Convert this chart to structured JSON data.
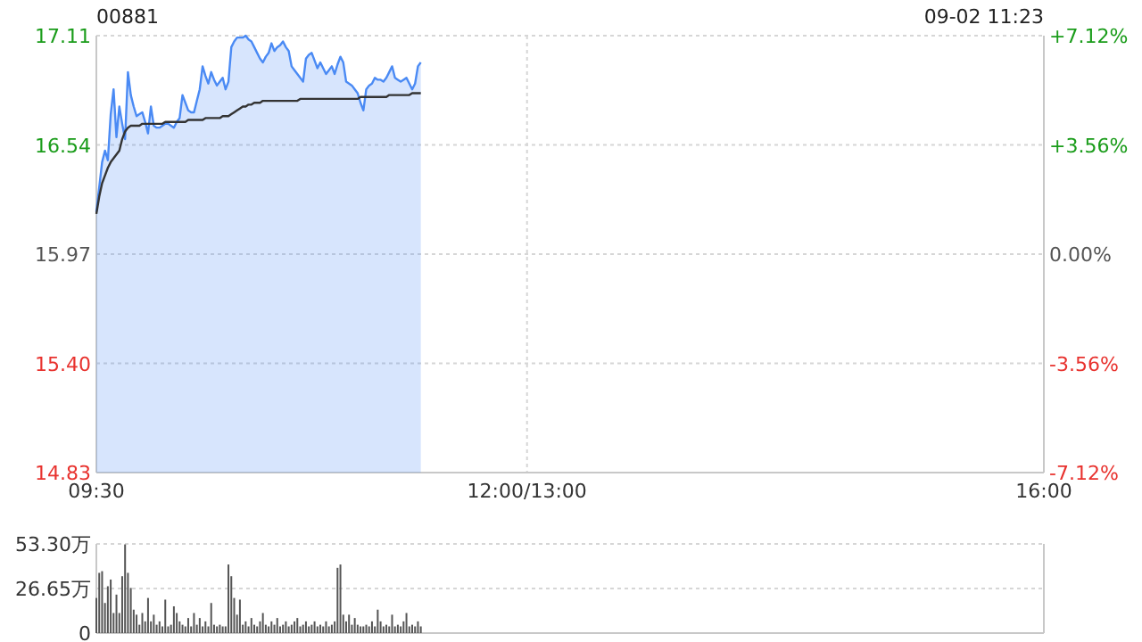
{
  "chart_data": [
    {
      "type": "line",
      "title": "00881",
      "subtitle": "09-02 11:23",
      "grid": true,
      "categories": [
        "09:30",
        null,
        null,
        null,
        null,
        null,
        null,
        null,
        null,
        null,
        null,
        null,
        null,
        null,
        null,
        null,
        null,
        null,
        null,
        null,
        null,
        null,
        null,
        null,
        null,
        null,
        null,
        null,
        null,
        null,
        null,
        null,
        null,
        null,
        null,
        null,
        null,
        null,
        null,
        null,
        null,
        null,
        null,
        null,
        null,
        null,
        null,
        null,
        null,
        null,
        null,
        null,
        null,
        null,
        null,
        null,
        null,
        null,
        null,
        null,
        null,
        null,
        null,
        null,
        null,
        null,
        null,
        null,
        null,
        null,
        null,
        null,
        null,
        null,
        null,
        null,
        null,
        null,
        null,
        null,
        null,
        null,
        null,
        null,
        null,
        null,
        null,
        null,
        null,
        null,
        null,
        null,
        null,
        null,
        null,
        null,
        null,
        null,
        null,
        null,
        null,
        null,
        null,
        null,
        null,
        null,
        null,
        null,
        null,
        null,
        null,
        null,
        null,
        null,
        null,
        null,
        null,
        null,
        null,
        null,
        null,
        null,
        null,
        null,
        null,
        null,
        null,
        null,
        null,
        null,
        null,
        null,
        null,
        null,
        null,
        null,
        null,
        null,
        null,
        null,
        null,
        null,
        null,
        null,
        null,
        null,
        null,
        null,
        null,
        null,
        "12:00/13:00",
        null,
        null,
        null,
        null,
        null,
        null,
        null,
        null,
        null,
        null,
        null,
        null,
        null,
        null,
        null,
        null,
        null,
        null,
        null,
        null,
        null,
        null,
        null,
        null,
        null,
        null,
        null,
        null,
        null,
        null,
        null,
        null,
        null,
        null,
        null,
        null,
        null,
        null,
        null,
        null,
        null,
        null,
        null,
        null,
        null,
        null,
        null,
        null,
        null,
        null,
        null,
        null,
        null,
        null,
        null,
        null,
        null,
        null,
        null,
        null,
        null,
        null,
        null,
        null,
        null,
        null,
        null,
        null,
        null,
        null,
        null,
        null,
        null,
        null,
        null,
        null,
        null,
        null,
        null,
        null,
        null,
        null,
        null,
        null,
        null,
        null,
        null,
        null,
        null,
        null,
        null,
        null,
        null,
        null,
        null,
        null,
        null,
        null,
        null,
        null,
        null,
        null,
        null,
        null,
        null,
        null,
        null,
        null,
        null,
        null,
        null,
        null,
        null,
        null,
        null,
        null,
        null,
        null,
        null,
        null,
        null,
        null,
        null,
        null,
        null,
        null,
        null,
        null,
        null,
        null,
        null,
        null,
        null,
        null,
        null,
        null,
        null,
        null,
        null,
        null,
        null,
        null,
        null,
        null,
        null,
        null,
        null,
        null,
        null,
        null,
        null,
        null,
        null,
        null,
        null,
        null,
        null,
        null,
        null,
        null,
        null,
        null,
        null,
        null,
        null,
        null,
        null,
        null,
        null,
        null,
        null,
        null,
        null,
        null,
        null,
        null,
        null,
        null,
        null,
        "16:00"
      ],
      "ylim": [
        14.83,
        17.11
      ],
      "yticks": [
        14.83,
        {
          "value": 15.4,
          "label": "15.40"
        },
        15.97,
        16.54,
        17.11
      ],
      "y2lim": [
        -7.12,
        7.12
      ],
      "y2ticks": [
        {
          "value": -7.12,
          "label": "-7.12%"
        },
        {
          "value": -3.56,
          "label": "-3.56%"
        },
        {
          "value": 0,
          "label": "0.00%"
        },
        {
          "value": 3.56,
          "label": "+3.56%"
        },
        {
          "value": 7.12,
          "label": "+7.12%"
        }
      ],
      "series": [
        {
          "type": "area",
          "color": "#4a8af4",
          "values": [
            16.19,
            16.32,
            16.45,
            16.51,
            16.46,
            16.7,
            16.83,
            16.58,
            16.74,
            16.65,
            16.57,
            16.92,
            16.8,
            16.74,
            16.69,
            16.7,
            16.71,
            16.66,
            16.6,
            16.74,
            16.64,
            16.63,
            16.63,
            16.64,
            16.65,
            16.65,
            16.64,
            16.63,
            16.66,
            16.68,
            16.8,
            16.76,
            16.72,
            16.71,
            16.71,
            16.77,
            16.83,
            16.95,
            16.9,
            16.86,
            16.92,
            16.88,
            16.85,
            16.87,
            16.89,
            16.83,
            16.87,
            17.05,
            17.08,
            17.1,
            17.1,
            17.1,
            17.11,
            17.09,
            17.08,
            17.05,
            17.02,
            16.99,
            16.97,
            17.0,
            17.02,
            17.07,
            17.03,
            17.05,
            17.06,
            17.08,
            17.05,
            17.03,
            16.95,
            16.93,
            16.91,
            16.89,
            16.87,
            16.99,
            17.01,
            17.02,
            16.98,
            16.94,
            16.97,
            16.94,
            16.91,
            16.93,
            16.95,
            16.91,
            16.96,
            17.0,
            16.97,
            16.87,
            16.86,
            16.85,
            16.83,
            16.81,
            16.76,
            16.72,
            16.83,
            16.85,
            16.86,
            16.89,
            16.88,
            16.88,
            16.87,
            16.89,
            16.92,
            16.95,
            16.89,
            16.88,
            16.87,
            16.88,
            16.89,
            16.86,
            16.83,
            16.86,
            16.95,
            16.97,
            null,
            null,
            null,
            null,
            null,
            null,
            null,
            null,
            null,
            null,
            null,
            null,
            null,
            null,
            null,
            null,
            null,
            null,
            null,
            null,
            null,
            null,
            null,
            null,
            null,
            null,
            null,
            null,
            null,
            null,
            null,
            null,
            null,
            null,
            null,
            null,
            null,
            null,
            null,
            null,
            null,
            null,
            null,
            null,
            null,
            null,
            null,
            null,
            null,
            null,
            null,
            null,
            null,
            null,
            null,
            null,
            null,
            null,
            null,
            null,
            null,
            null,
            null,
            null,
            null,
            null,
            null,
            null,
            null,
            null,
            null,
            null,
            null,
            null,
            null,
            null,
            null,
            null,
            null,
            null,
            null,
            null,
            null,
            null,
            null,
            null,
            null,
            null,
            null,
            null,
            null,
            null,
            null,
            null,
            null,
            null,
            null,
            null,
            null,
            null,
            null,
            null,
            null,
            null,
            null,
            null,
            null,
            null,
            null,
            null,
            null,
            null,
            null,
            null,
            null,
            null,
            null,
            null,
            null,
            null,
            null,
            null,
            null,
            null,
            null,
            null,
            null,
            null,
            null,
            null,
            null,
            null,
            null,
            null,
            null,
            null,
            null,
            null,
            null,
            null,
            null,
            null,
            null,
            null,
            null,
            null,
            null,
            null,
            null,
            null,
            null,
            null,
            null,
            null,
            null,
            null,
            null,
            null,
            null,
            null,
            null,
            null,
            null,
            null,
            null,
            null,
            null,
            null,
            null,
            null,
            null,
            null,
            null,
            null,
            null,
            null,
            null,
            null,
            null,
            null,
            null,
            null,
            null,
            null,
            null,
            null,
            null,
            null,
            null,
            null,
            null,
            null,
            null,
            null,
            null,
            null,
            null,
            null,
            null,
            null,
            null,
            null,
            null,
            null,
            null,
            null,
            null,
            null,
            null,
            null,
            null,
            null,
            null,
            null,
            null,
            null,
            null
          ]
        },
        {
          "color": "#333333",
          "values": [
            16.18,
            16.27,
            16.34,
            16.38,
            16.42,
            16.45,
            16.47,
            16.49,
            16.51,
            16.57,
            16.61,
            16.63,
            16.64,
            16.64,
            16.64,
            16.64,
            16.65,
            16.65,
            16.65,
            16.65,
            16.65,
            16.65,
            16.65,
            16.65,
            16.66,
            16.66,
            16.66,
            16.66,
            16.66,
            16.66,
            16.66,
            16.66,
            16.67,
            16.67,
            16.67,
            16.67,
            16.67,
            16.67,
            16.68,
            16.68,
            16.68,
            16.68,
            16.68,
            16.68,
            16.69,
            16.69,
            16.69,
            16.7,
            16.71,
            16.72,
            16.73,
            16.74,
            16.74,
            16.75,
            16.75,
            16.76,
            16.76,
            16.76,
            16.77,
            16.77,
            16.77,
            16.77,
            16.77,
            16.77,
            16.77,
            16.77,
            16.77,
            16.77,
            16.77,
            16.77,
            16.77,
            16.78,
            16.78,
            16.78,
            16.78,
            16.78,
            16.78,
            16.78,
            16.78,
            16.78,
            16.78,
            16.78,
            16.78,
            16.78,
            16.78,
            16.78,
            16.78,
            16.78,
            16.78,
            16.78,
            16.78,
            16.78,
            16.79,
            16.79,
            16.79,
            16.79,
            16.79,
            16.79,
            16.79,
            16.79,
            16.79,
            16.79,
            16.8,
            16.8,
            16.8,
            16.8,
            16.8,
            16.8,
            16.8,
            16.8,
            16.81,
            16.81,
            16.81,
            16.81,
            null,
            null,
            null,
            null,
            null,
            null,
            null,
            null,
            null,
            null,
            null,
            null,
            null,
            null,
            null,
            null,
            null,
            null,
            null,
            null,
            null,
            null,
            null,
            null,
            null,
            null,
            null,
            null,
            null,
            null,
            null,
            null,
            null,
            null,
            null,
            null,
            null,
            null,
            null,
            null,
            null,
            null,
            null,
            null,
            null,
            null,
            null,
            null,
            null,
            null,
            null,
            null,
            null,
            null,
            null,
            null,
            null,
            null,
            null,
            null,
            null,
            null,
            null,
            null,
            null,
            null,
            null,
            null,
            null,
            null,
            null,
            null,
            null,
            null,
            null,
            null,
            null,
            null,
            null,
            null,
            null,
            null,
            null,
            null,
            null,
            null,
            null,
            null,
            null,
            null,
            null,
            null,
            null,
            null,
            null,
            null,
            null,
            null,
            null,
            null,
            null,
            null,
            null,
            null,
            null,
            null,
            null,
            null,
            null,
            null,
            null,
            null,
            null,
            null,
            null,
            null,
            null,
            null,
            null,
            null,
            null,
            null,
            null,
            null,
            null,
            null,
            null,
            null,
            null,
            null,
            null,
            null,
            null,
            null,
            null,
            null,
            null,
            null,
            null,
            null,
            null,
            null,
            null,
            null,
            null,
            null,
            null,
            null,
            null,
            null,
            null,
            null,
            null,
            null,
            null,
            null,
            null,
            null,
            null,
            null,
            null,
            null,
            null,
            null,
            null,
            null,
            null,
            null,
            null,
            null,
            null,
            null,
            null,
            null,
            null,
            null,
            null,
            null,
            null,
            null,
            null,
            null,
            null,
            null,
            null,
            null,
            null,
            null,
            null,
            null,
            null,
            null,
            null,
            null,
            null,
            null,
            null,
            null,
            null,
            null,
            null,
            null,
            null,
            null,
            null,
            null,
            null,
            null,
            null,
            null,
            null,
            null,
            null,
            null,
            null,
            null,
            null
          ]
        }
      ]
    },
    {
      "type": "bar",
      "grid": "y",
      "tick_labels": "y",
      "categories": [
        null,
        null,
        null,
        null,
        null,
        null,
        null,
        null,
        null,
        null,
        null,
        null,
        null,
        null,
        null,
        null,
        null,
        null,
        null,
        null,
        null,
        null,
        null,
        null,
        null,
        null,
        null,
        null,
        null,
        null,
        null,
        null,
        null,
        null,
        null,
        null,
        null,
        null,
        null,
        null,
        null,
        null,
        null,
        null,
        null,
        null,
        null,
        null,
        null,
        null,
        null,
        null,
        null,
        null,
        null,
        null,
        null,
        null,
        null,
        null,
        null,
        null,
        null,
        null,
        null,
        null,
        null,
        null,
        null,
        null,
        null,
        null,
        null,
        null,
        null,
        null,
        null,
        null,
        null,
        null,
        null,
        null,
        null,
        null,
        null,
        null,
        null,
        null,
        null,
        null,
        null,
        null,
        null,
        null,
        null,
        null,
        null,
        null,
        null,
        null,
        null,
        null,
        null,
        null,
        null,
        null,
        null,
        null,
        null,
        null,
        null,
        null,
        null,
        null,
        null,
        null,
        null,
        null,
        null,
        null,
        null,
        null,
        null,
        null,
        null,
        null,
        null,
        null,
        null,
        null,
        null,
        null,
        null,
        null,
        null,
        null,
        null,
        null,
        null,
        null,
        null,
        null,
        null,
        null,
        null,
        null,
        null,
        null,
        null,
        null,
        null,
        null,
        null,
        null,
        null,
        null,
        null,
        null,
        null,
        null,
        null,
        null,
        null,
        null,
        null,
        null,
        null,
        null,
        null,
        null,
        null,
        null,
        null,
        null,
        null,
        null,
        null,
        null,
        null,
        null,
        null,
        null,
        null,
        null,
        null,
        null,
        null,
        null,
        null,
        null,
        null,
        null,
        null,
        null,
        null,
        null,
        null,
        null,
        null,
        null,
        null,
        null,
        null,
        null,
        null,
        null,
        null,
        null,
        null,
        null,
        null,
        null,
        null,
        null,
        null,
        null,
        null,
        null,
        null,
        null,
        null,
        null,
        null,
        null,
        null,
        null,
        null,
        null,
        null,
        null,
        null,
        null,
        null,
        null,
        null,
        null,
        null,
        null,
        null,
        null,
        null,
        null,
        null,
        null,
        null,
        null,
        null,
        null,
        null,
        null,
        null,
        null,
        null,
        null,
        null,
        null,
        null,
        null,
        null,
        null,
        null,
        null,
        null,
        null,
        null,
        null,
        null,
        null,
        null,
        null,
        null,
        null,
        null,
        null,
        null,
        null,
        null,
        null,
        null,
        null,
        null,
        null,
        null,
        null,
        null,
        null,
        null,
        null,
        null,
        null,
        null,
        null,
        null,
        null,
        null,
        null,
        null,
        null,
        null,
        null,
        null,
        null,
        null,
        null,
        null,
        null,
        null,
        null,
        null,
        null,
        null,
        null,
        null,
        null,
        null,
        null,
        null,
        null,
        null,
        null,
        null,
        null,
        null,
        null,
        null,
        null,
        null,
        null,
        null,
        null,
        null
      ],
      "ylim": [
        0,
        53.3
      ],
      "yticks": [
        0,
        {
          "value": 26.65,
          "label": "26.65万"
        },
        {
          "value": 53.3,
          "label": "53.30万"
        }
      ],
      "series": [
        {
          "color": "#555555",
          "values": [
            21,
            36,
            37,
            18,
            28,
            32,
            12,
            23,
            12,
            34,
            53,
            36,
            27,
            14,
            11,
            5,
            12,
            7,
            21,
            7,
            11,
            5,
            7,
            4,
            20,
            4,
            5,
            16,
            12,
            7,
            5,
            4,
            9,
            4,
            12,
            5,
            9,
            4,
            7,
            4,
            18,
            5,
            4,
            5,
            4,
            4,
            41,
            34,
            21,
            11,
            20,
            5,
            7,
            4,
            9,
            5,
            4,
            7,
            12,
            5,
            4,
            7,
            5,
            9,
            4,
            5,
            7,
            4,
            5,
            7,
            9,
            4,
            5,
            7,
            4,
            5,
            7,
            4,
            5,
            4,
            7,
            4,
            5,
            7,
            39,
            41,
            11,
            7,
            11,
            5,
            9,
            5,
            4,
            4,
            5,
            4,
            7,
            4,
            14,
            7,
            4,
            5,
            4,
            11,
            4,
            5,
            4,
            7,
            12,
            4,
            5,
            4,
            7,
            4,
            null,
            null,
            null,
            null,
            null,
            null,
            null,
            null,
            null,
            null,
            null,
            null,
            null,
            null,
            null,
            null,
            null,
            null,
            null,
            null,
            null,
            null,
            null,
            null,
            null,
            null,
            null,
            null,
            null,
            null,
            null,
            null,
            null,
            null,
            null,
            null,
            null,
            null,
            null,
            null,
            null,
            null,
            null,
            null,
            null,
            null,
            null,
            null,
            null,
            null,
            null,
            null,
            null,
            null,
            null,
            null,
            null,
            null,
            null,
            null,
            null,
            null,
            null,
            null,
            null,
            null,
            null,
            null,
            null,
            null,
            null,
            null,
            null,
            null,
            null,
            null,
            null,
            null,
            null,
            null,
            null,
            null,
            null,
            null,
            null,
            null,
            null,
            null,
            null,
            null,
            null,
            null,
            null,
            null,
            null,
            null,
            null,
            null,
            null,
            null,
            null,
            null,
            null,
            null,
            null,
            null,
            null,
            null,
            null,
            null,
            null,
            null,
            null,
            null,
            null,
            null,
            null,
            null,
            null,
            null,
            null,
            null,
            null,
            null,
            null,
            null,
            null,
            null,
            null,
            null,
            null,
            null,
            null,
            null,
            null,
            null,
            null,
            null,
            null,
            null,
            null,
            null,
            null,
            null,
            null,
            null,
            null,
            null,
            null,
            null,
            null,
            null,
            null,
            null,
            null,
            null,
            null,
            null,
            null,
            null,
            null,
            null,
            null,
            null,
            null,
            null,
            null,
            null,
            null,
            null,
            null,
            null,
            null,
            null,
            null,
            null,
            null,
            null,
            null,
            null,
            null,
            null,
            null,
            null,
            null,
            null,
            null,
            null,
            null,
            null,
            null,
            null,
            null,
            null,
            null,
            null,
            null,
            null,
            null,
            null,
            null,
            null,
            null,
            null,
            null,
            null,
            null,
            null,
            null,
            null,
            null,
            null,
            null,
            null,
            null,
            null,
            null
          ]
        }
      ]
    }
  ]
}
